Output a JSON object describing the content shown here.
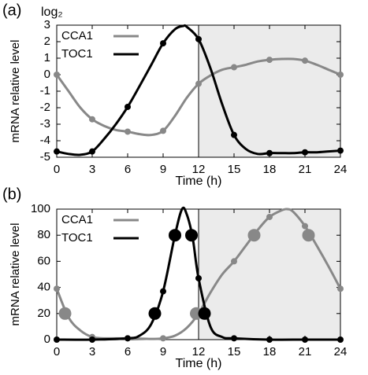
{
  "chart_data": [
    {
      "type": "line",
      "panel_label": "(a)",
      "unit_label": "log₂",
      "xlabel": "Time (h)",
      "ylabel": "mRNA relative level",
      "xlim": [
        0,
        24
      ],
      "xticks": [
        0,
        3,
        6,
        9,
        12,
        15,
        18,
        21,
        24
      ],
      "ylim": [
        -5,
        3
      ],
      "yticks": [
        -5,
        -4,
        -3,
        -2,
        -1,
        0,
        1,
        2,
        3
      ],
      "shade": [
        12,
        24
      ],
      "shade_color": "#ebebeb",
      "legend": "upper-left",
      "series": [
        {
          "name": "CCA1",
          "color": "#888888",
          "x": [
            0,
            1,
            2,
            3,
            4,
            5,
            6,
            7,
            8,
            9,
            10,
            11,
            12,
            13,
            14,
            15,
            16,
            17,
            18,
            19,
            20,
            21,
            22,
            23,
            24
          ],
          "values": [
            0,
            -1.0,
            -2.0,
            -2.7,
            -3.1,
            -3.35,
            -3.45,
            -3.6,
            -3.65,
            -3.4,
            -2.5,
            -1.4,
            -0.55,
            -0.05,
            0.3,
            0.45,
            0.6,
            0.8,
            0.9,
            0.95,
            0.95,
            0.85,
            0.6,
            0.3,
            0
          ]
        },
        {
          "name": "TOC1",
          "color": "#000000",
          "x": [
            0,
            1,
            2,
            3,
            4,
            5,
            6,
            7,
            8,
            9,
            10,
            10.7,
            11,
            12,
            13,
            14,
            15,
            16,
            17,
            18,
            19,
            20,
            21,
            22,
            23,
            24
          ],
          "values": [
            -4.65,
            -4.8,
            -4.85,
            -4.65,
            -3.9,
            -3.0,
            -1.95,
            -0.7,
            0.6,
            1.9,
            2.75,
            2.95,
            2.9,
            2.15,
            0.4,
            -1.8,
            -3.65,
            -4.5,
            -4.8,
            -4.75,
            -4.75,
            -4.75,
            -4.7,
            -4.7,
            -4.65,
            -4.6
          ]
        }
      ],
      "markers": [
        {
          "color": "#888888",
          "size": 4,
          "x": [
            0,
            3,
            6,
            9,
            12,
            15,
            18,
            21,
            24
          ],
          "values": [
            0,
            -2.7,
            -3.45,
            -3.4,
            -0.55,
            0.45,
            0.9,
            0.85,
            0
          ]
        },
        {
          "color": "#000000",
          "size": 4,
          "x": [
            0,
            3,
            6,
            9,
            12,
            15,
            18,
            21,
            24
          ],
          "values": [
            -4.65,
            -4.65,
            -1.95,
            1.9,
            2.15,
            -3.65,
            -4.75,
            -4.7,
            -4.6
          ]
        }
      ]
    },
    {
      "type": "line",
      "panel_label": "(b)",
      "xlabel": "Time (h)",
      "ylabel": "mRNA relative level",
      "xlim": [
        0,
        24
      ],
      "xticks": [
        0,
        3,
        6,
        9,
        12,
        15,
        18,
        21,
        24
      ],
      "ylim": [
        0,
        100
      ],
      "yticks": [
        0,
        20,
        40,
        60,
        80,
        100
      ],
      "shade": [
        12,
        24
      ],
      "shade_color": "#ebebeb",
      "legend": "upper-left",
      "series": [
        {
          "name": "CCA1",
          "color": "#888888",
          "x": [
            0,
            1,
            2,
            3,
            4,
            6,
            8,
            9,
            10,
            11,
            12,
            13,
            14,
            15,
            16,
            17,
            18,
            19,
            19.5,
            20,
            21,
            22,
            23,
            24
          ],
          "values": [
            39,
            17,
            7,
            2,
            1,
            1,
            0.5,
            1,
            3,
            9,
            20,
            36,
            50,
            60,
            72,
            84,
            94,
            99,
            100,
            98,
            87,
            72,
            56,
            39
          ]
        },
        {
          "name": "TOC1",
          "color": "#000000",
          "x": [
            0,
            3,
            6,
            7,
            8,
            9,
            10,
            10.6,
            11,
            11.5,
            12,
            13,
            14,
            15,
            18,
            21,
            24
          ],
          "values": [
            0,
            0,
            1,
            3,
            12,
            37,
            80,
            100,
            96,
            78,
            47,
            10,
            2,
            1,
            0,
            0,
            0
          ]
        }
      ],
      "markers": [
        {
          "color": "#888888",
          "size": 4,
          "x": [
            0,
            3,
            6,
            9,
            12,
            15,
            18,
            21,
            24
          ],
          "values": [
            39,
            2,
            1,
            1,
            20,
            60,
            94,
            87,
            39
          ]
        },
        {
          "color": "#000000",
          "size": 4,
          "x": [
            0,
            3,
            6,
            9,
            12,
            15,
            18,
            21,
            24
          ],
          "values": [
            0,
            0,
            1,
            37,
            47,
            1,
            0,
            0,
            0
          ]
        },
        {
          "color": "#888888",
          "size": 8,
          "x": [
            0.7,
            11.8,
            16.7,
            21.3
          ],
          "values": [
            20,
            20,
            80,
            80
          ]
        },
        {
          "color": "#000000",
          "size": 8,
          "x": [
            8.3,
            10.0,
            11.4,
            12.5
          ],
          "values": [
            20,
            80,
            80,
            20
          ]
        }
      ]
    }
  ]
}
